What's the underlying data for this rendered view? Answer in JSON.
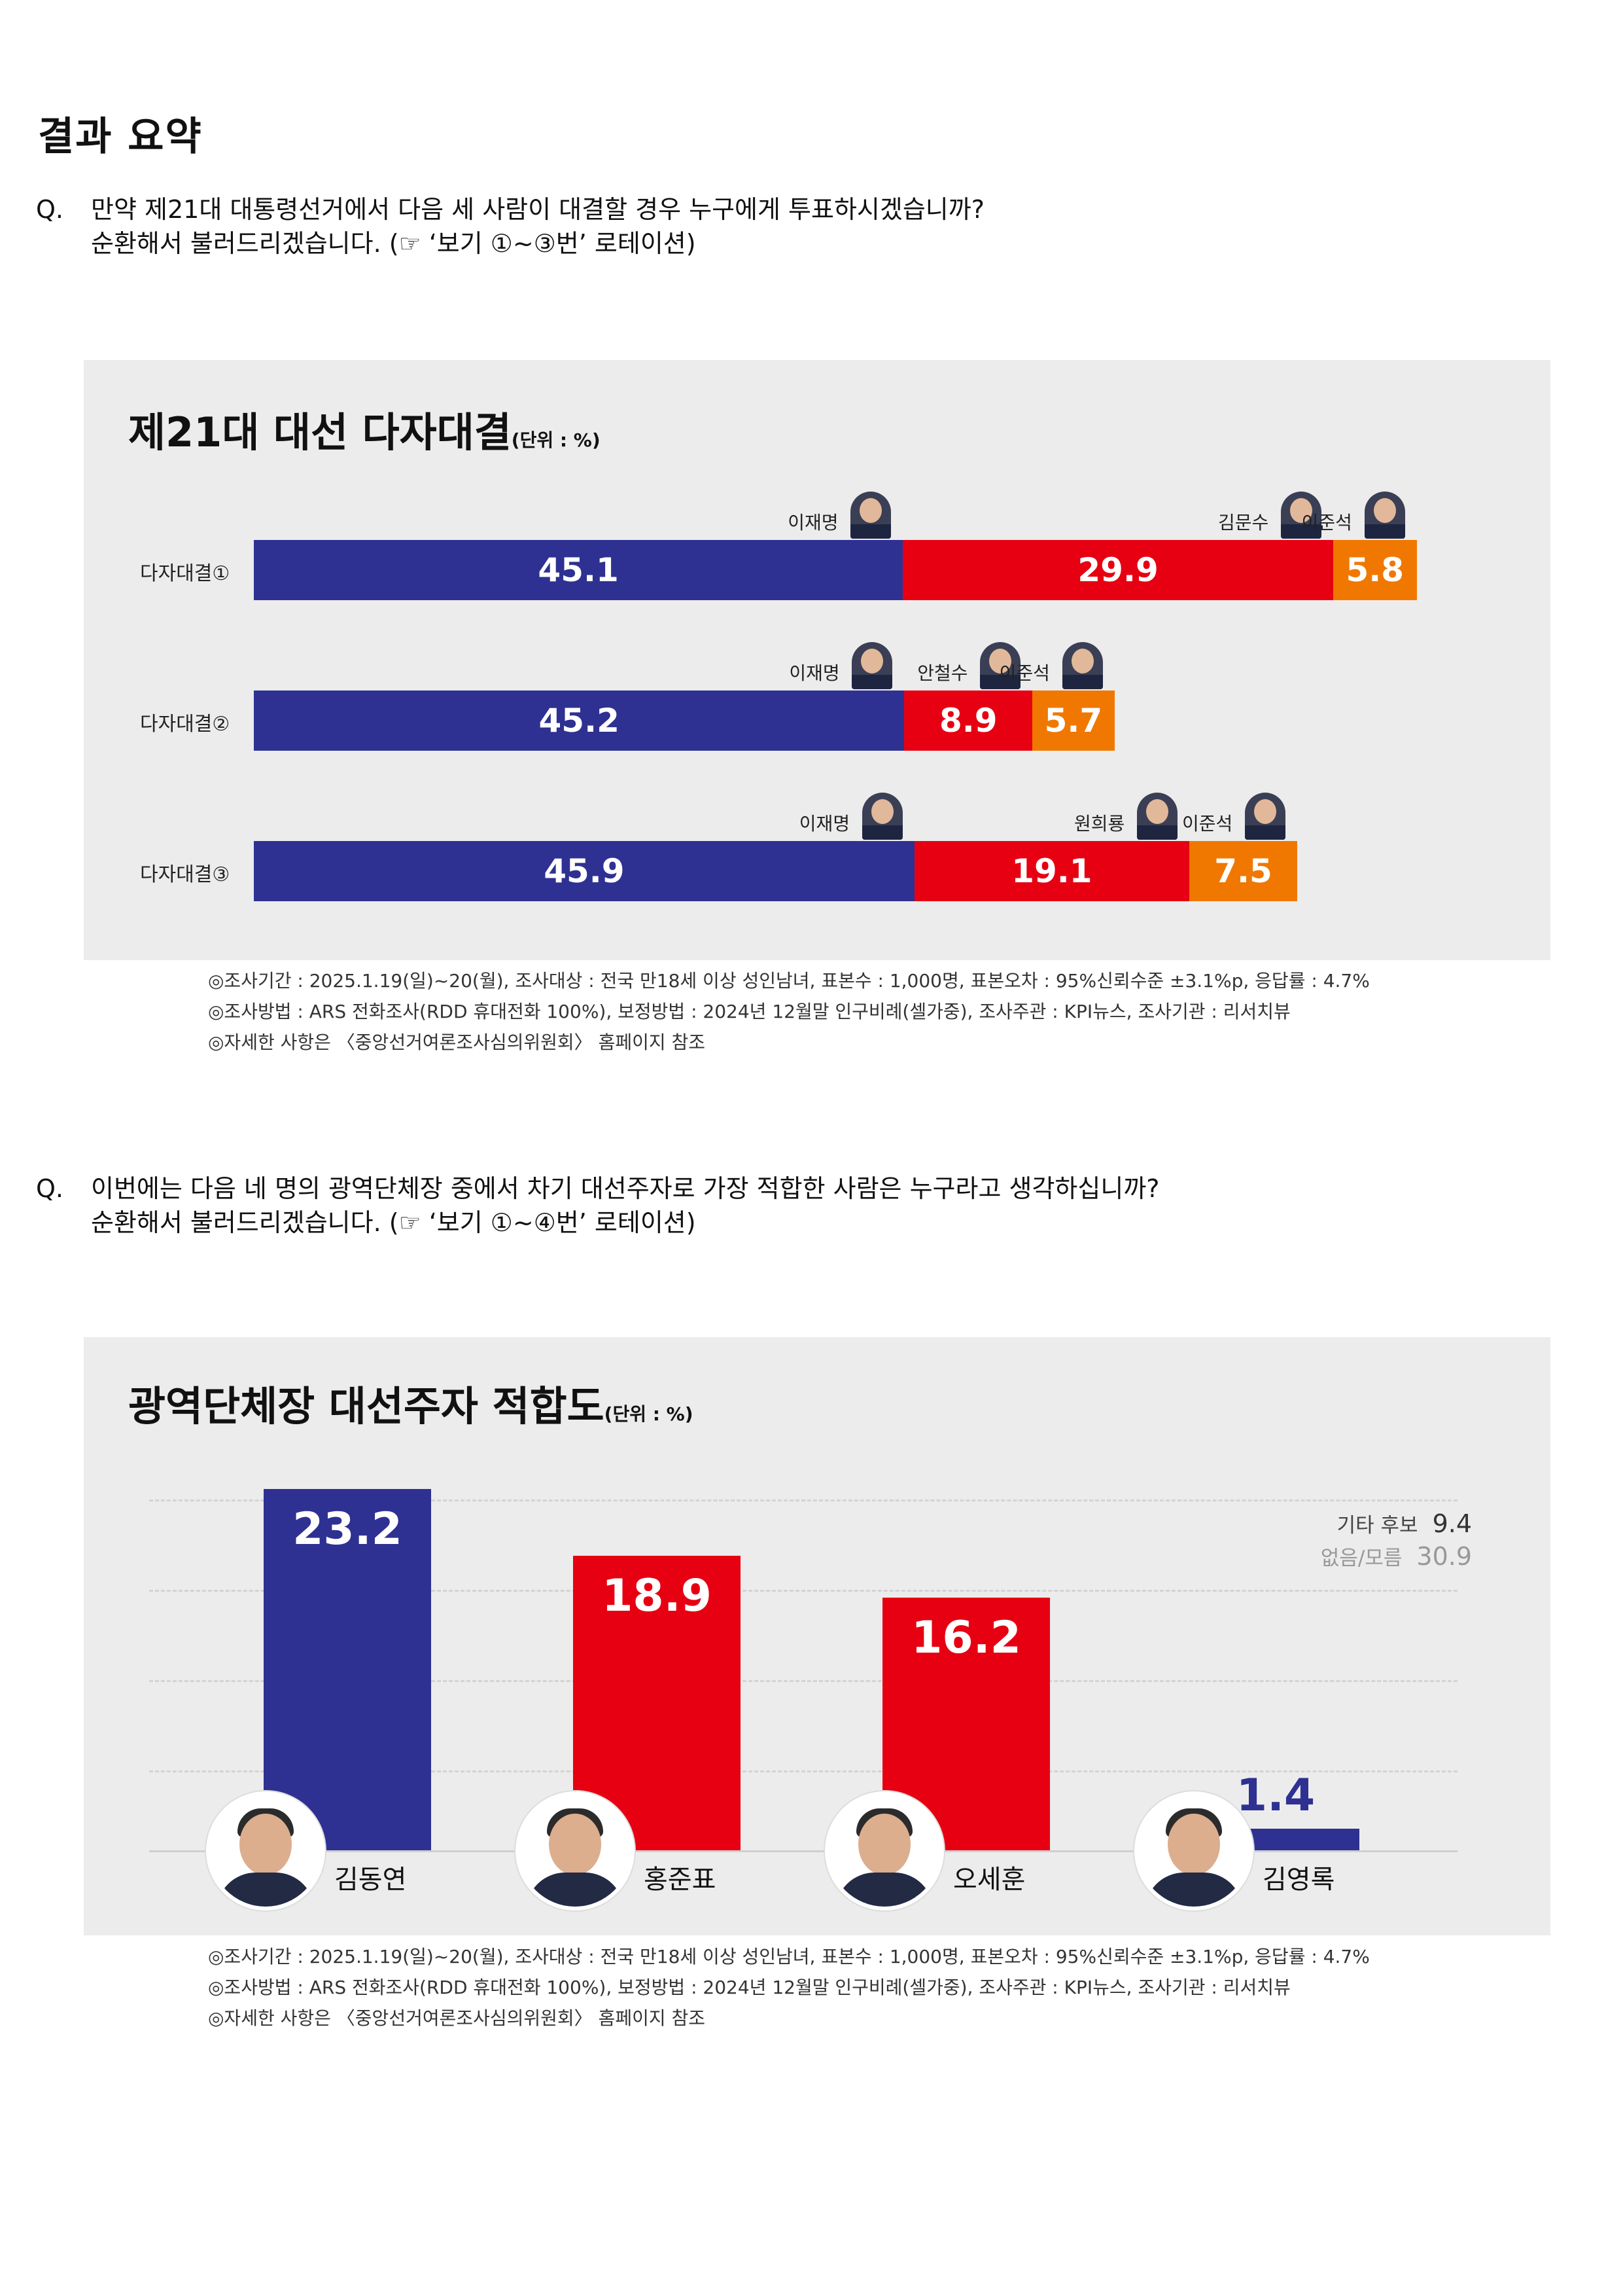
{
  "page": {
    "title": "결과 요약"
  },
  "questions": [
    {
      "label": "Q.",
      "text": "만약 제21대 대통령선거에서 다음 세 사람이 대결할 경우 누구에게 투표하시겠습니까?",
      "sub": "순환해서 불러드리겠습니다. (☞ ‘보기 ①~③번’ 로테이션)"
    },
    {
      "label": "Q.",
      "text": "이번에는 다음 네 명의 광역단체장 중에서 차기 대선주자로 가장 적합한 사람은 누구라고 생각하십니까?",
      "sub": "순환해서 불러드리겠습니다. (☞ ‘보기 ①~④번’ 로테이션)"
    }
  ],
  "chart_data": [
    {
      "type": "bar",
      "orientation": "horizontal-stacked",
      "title": "제21대 대선 다자대결",
      "unit": "(단위 : %)",
      "xlim": [
        0,
        100
      ],
      "rows": [
        {
          "label": "다자대결①",
          "segments": [
            {
              "name": "이재명",
              "value": 45.1,
              "color": "#2e3192"
            },
            {
              "name": "김문수",
              "value": 29.9,
              "color": "#e60012"
            },
            {
              "name": "이준석",
              "value": 5.8,
              "color": "#f07800"
            }
          ]
        },
        {
          "label": "다자대결②",
          "segments": [
            {
              "name": "이재명",
              "value": 45.2,
              "color": "#2e3192"
            },
            {
              "name": "안철수",
              "value": 8.9,
              "color": "#e60012"
            },
            {
              "name": "이준석",
              "value": 5.7,
              "color": "#f07800"
            }
          ]
        },
        {
          "label": "다자대결③",
          "segments": [
            {
              "name": "이재명",
              "value": 45.9,
              "color": "#2e3192"
            },
            {
              "name": "원희룡",
              "value": 19.1,
              "color": "#e60012"
            },
            {
              "name": "이준석",
              "value": 7.5,
              "color": "#f07800"
            }
          ]
        }
      ]
    },
    {
      "type": "bar",
      "title": "광역단체장 대선주자 적합도",
      "unit": "(단위 : %)",
      "ylim": [
        0,
        25
      ],
      "categories": [
        "김동연",
        "홍준표",
        "오세훈",
        "김영록"
      ],
      "values": [
        23.2,
        18.9,
        16.2,
        1.4
      ],
      "colors": [
        "#2e3192",
        "#e60012",
        "#e60012",
        "#2e3192"
      ],
      "legend": [
        {
          "label": "기타 후보",
          "value": "9.4"
        },
        {
          "label": "없음/모름",
          "value": "30.9"
        }
      ]
    }
  ],
  "notes": [
    "◎조사기간 : 2025.1.19(일)~20(월), 조사대상 : 전국 만18세 이상 성인남녀, 표본수 : 1,000명, 표본오차 : 95%신뢰수준 ±3.1%p, 응답률 : 4.7%",
    "◎조사방법 : ARS 전화조사(RDD 휴대전화 100%), 보정방법 : 2024년 12월말 인구비례(셀가중), 조사주관 : KPI뉴스, 조사기관 : 리서치뷰",
    "◎자세한 사항은 〈중앙선거여론조사심의위원회〉 홈페이지 참조"
  ],
  "colors": {
    "blue": "#2e3192",
    "red": "#e60012",
    "orange": "#f07800",
    "panel_bg": "#ececec"
  }
}
